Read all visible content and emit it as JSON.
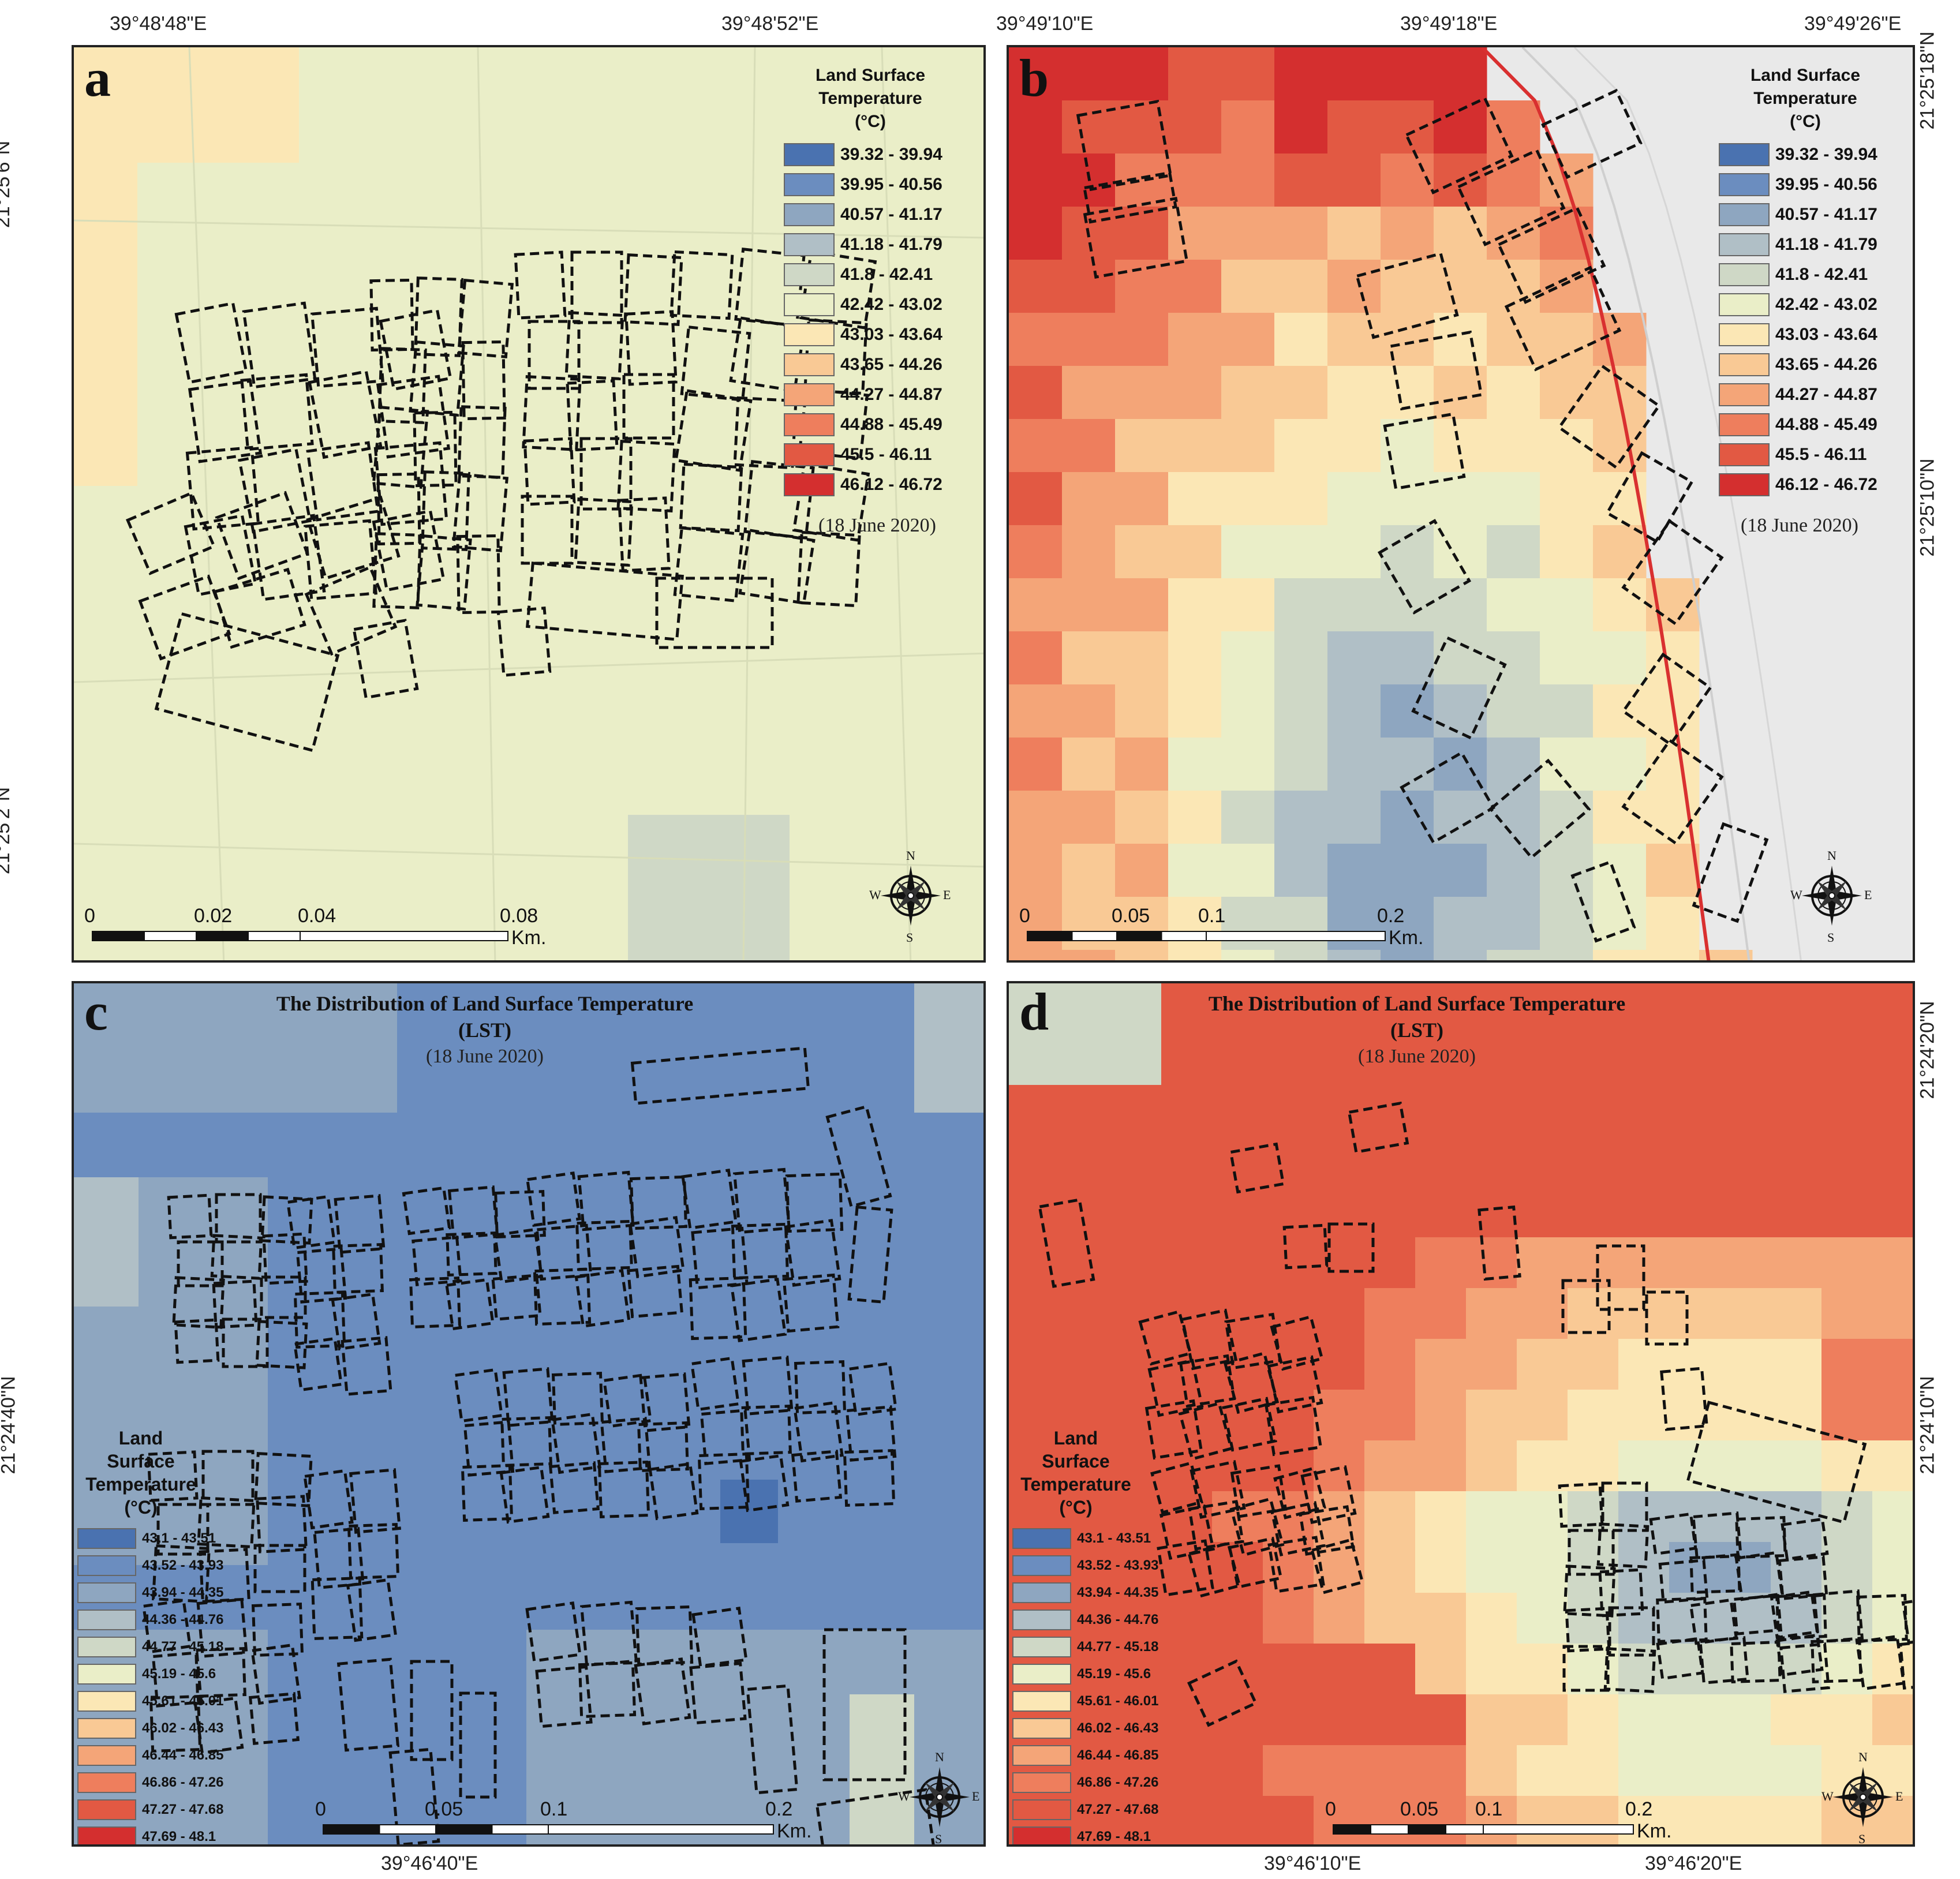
{
  "palette_a_b": [
    "#4a72b0",
    "#6b8dbf",
    "#8ea6c0",
    "#b0bfc6",
    "#cfd8c6",
    "#eaeec8",
    "#fbe7b5",
    "#f9c995",
    "#f4a578",
    "#ee7e5d",
    "#e25943",
    "#d42f2f"
  ],
  "palette_c_d": [
    "#4a72b0",
    "#6b8dbf",
    "#8ea6c0",
    "#b0bfc6",
    "#cfd8c6",
    "#eaeec8",
    "#fbe7b5",
    "#f9c995",
    "#f4a578",
    "#ee7e5d",
    "#e25943",
    "#d42f2f"
  ],
  "panels": [
    {
      "letter": "a",
      "legend_title": [
        "Land Surface",
        "Temperature",
        "(°C)"
      ],
      "legend_items": [
        "39.32 - 39.94",
        "39.95 - 40.56",
        "40.57 - 41.17",
        "41.18 - 41.79",
        "41.8 - 42.41",
        "42.42 - 43.02",
        "43.03 - 43.64",
        "43.65 - 44.26",
        "44.27 - 44.87",
        "44.88 - 45.49",
        "45.5 - 46.11",
        "46.12 - 46.72"
      ],
      "date": "(18 June 2020)",
      "top_coords": [
        "39°48'48\"E",
        "39°48'52\"E"
      ],
      "left_coords": [
        "21°25'6\"N",
        "21°25'2\"N"
      ],
      "right_coords": [],
      "bottom_coords": [],
      "scale_labels": [
        "0",
        "0.02",
        "0.04",
        "0.08"
      ],
      "scale_unit": "Km.",
      "compass": {
        "n": "N",
        "s": "S",
        "e": "E",
        "w": "W"
      }
    },
    {
      "letter": "b",
      "legend_title": [
        "Land Surface",
        "Temperature",
        "(°C)"
      ],
      "legend_items": [
        "39.32 - 39.94",
        "39.95 - 40.56",
        "40.57 - 41.17",
        "41.18 - 41.79",
        "41.8 - 42.41",
        "42.42 - 43.02",
        "43.03 - 43.64",
        "43.65 - 44.26",
        "44.27 - 44.87",
        "44.88 - 45.49",
        "45.5 - 46.11",
        "46.12 - 46.72"
      ],
      "date": "(18 June 2020)",
      "top_coords": [
        "39°49'10\"E",
        "39°49'18\"E",
        "39°49'26\"E"
      ],
      "left_coords": [],
      "right_coords": [
        "21°25'18\"N",
        "21°25'10\"N"
      ],
      "bottom_coords": [],
      "scale_labels": [
        "0",
        "0.05",
        "0.1",
        "0.2"
      ],
      "scale_unit": "Km.",
      "compass": {
        "n": "N",
        "s": "S",
        "e": "E",
        "w": "W"
      }
    },
    {
      "letter": "c",
      "title": [
        "The Distribution of Land Surface Temperature",
        "(LST)"
      ],
      "date": "(18 June 2020)",
      "legend_title": [
        "Land",
        "Surface",
        "Temperature",
        "(°C)"
      ],
      "legend_items": [
        "43.1 - 43.51",
        "43.52 - 43.93",
        "43.94 - 44.35",
        "44.36 - 44.76",
        "44.77 - 45.18",
        "45.19 - 45.6",
        "45.61 - 46.01",
        "46.02 - 46.43",
        "46.44 - 46.85",
        "46.86 - 47.26",
        "47.27 - 47.68",
        "47.69 - 48.1"
      ],
      "top_coords": [],
      "left_coords": [
        "21°24'40\"N"
      ],
      "right_coords": [],
      "bottom_coords": [
        "39°46'40\"E"
      ],
      "scale_labels": [
        "0",
        "0.05",
        "0.1",
        "0.2"
      ],
      "scale_unit": "Km.",
      "compass": {
        "n": "N",
        "s": "S",
        "e": "E",
        "w": "W"
      }
    },
    {
      "letter": "d",
      "title": [
        "The Distribution of Land Surface Temperature",
        "(LST)"
      ],
      "date": "(18 June 2020)",
      "legend_title": [
        "Land",
        "Surface",
        "Temperature",
        "(°C)"
      ],
      "legend_items": [
        "43.1 - 43.51",
        "43.52 - 43.93",
        "43.94 - 44.35",
        "44.36 - 44.76",
        "44.77 - 45.18",
        "45.19 - 45.6",
        "45.61 - 46.01",
        "46.02 - 46.43",
        "46.44 - 46.85",
        "46.86 - 47.26",
        "47.27 - 47.68",
        "47.69 - 48.1"
      ],
      "top_coords": [],
      "left_coords": [],
      "right_coords": [
        "21°24'20\"N",
        "21°24'10\"N"
      ],
      "bottom_coords": [
        "39°46'10\"E",
        "39°46'20\"E"
      ],
      "scale_labels": [
        "0",
        "0.05",
        "0.1",
        "0.2"
      ],
      "scale_unit": "Km.",
      "compass": {
        "n": "N",
        "s": "S",
        "e": "E",
        "w": "W"
      }
    }
  ]
}
